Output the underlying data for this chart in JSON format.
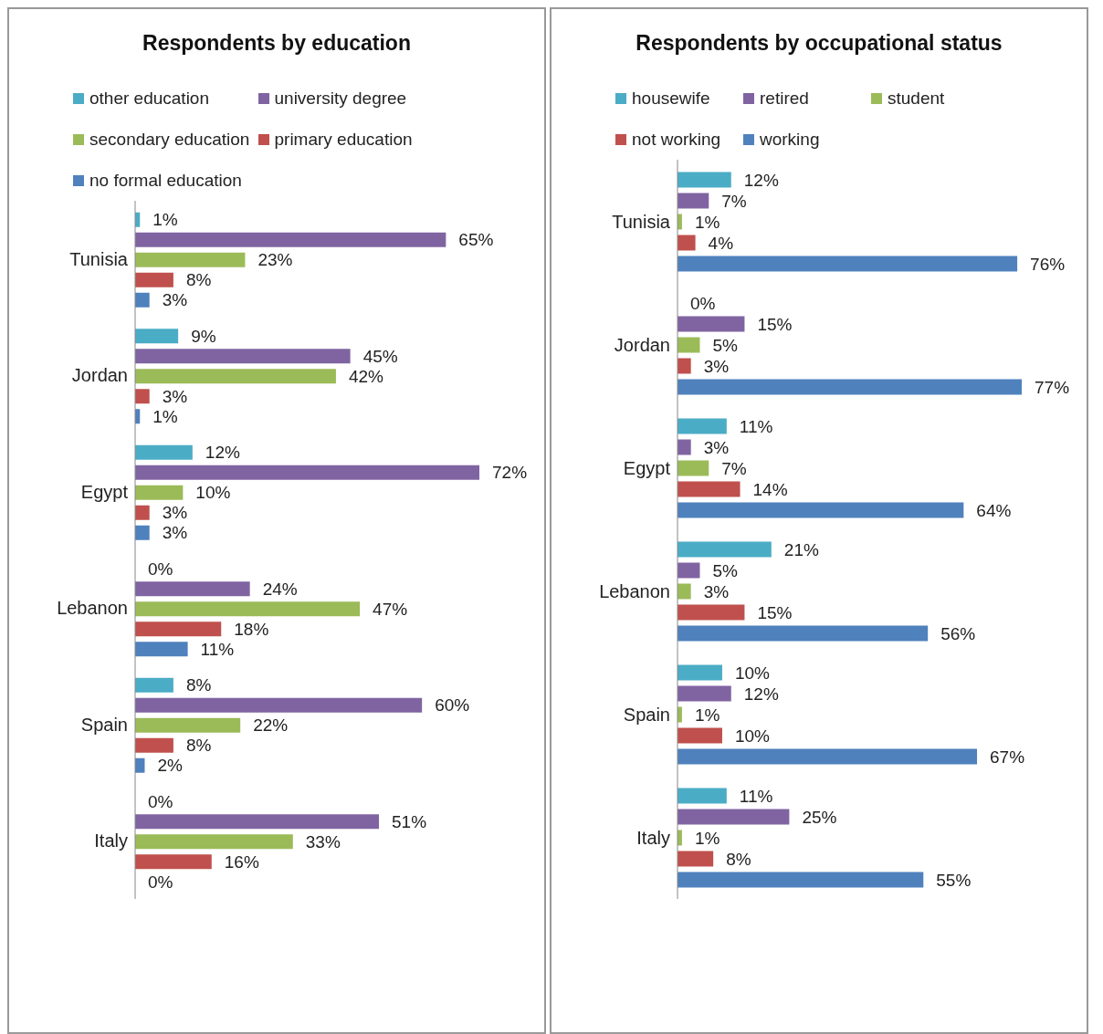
{
  "chart_data": [
    {
      "type": "bar",
      "orientation": "horizontal",
      "title": "Respondents by education",
      "legend": "top",
      "categories": [
        "Tunisia",
        "Jordan",
        "Egypt",
        "Lebanon",
        "Spain",
        "Italy"
      ],
      "series": [
        {
          "name": "other education",
          "color": "#4bacc6",
          "values": [
            1,
            9,
            12,
            0,
            8,
            0
          ],
          "value_labels": [
            "1%",
            "9%",
            "12%",
            "0%",
            "8%",
            "0%"
          ]
        },
        {
          "name": "university degree",
          "color": "#8064a2",
          "values": [
            65,
            45,
            72,
            24,
            60,
            51
          ],
          "value_labels": [
            "65%",
            "45%",
            "72%",
            "24%",
            "60%",
            "51%"
          ]
        },
        {
          "name": "secondary education",
          "color": "#9bbb59",
          "values": [
            23,
            42,
            10,
            47,
            22,
            33
          ],
          "value_labels": [
            "23%",
            "42%",
            "10%",
            "47%",
            "22%",
            "33%"
          ]
        },
        {
          "name": "primary education",
          "color": "#c0504d",
          "values": [
            8,
            3,
            3,
            18,
            8,
            16
          ],
          "value_labels": [
            "8%",
            "3%",
            "3%",
            "18%",
            "8%",
            "16%"
          ]
        },
        {
          "name": "no formal education",
          "color": "#4f81bd",
          "values": [
            3,
            1,
            3,
            11,
            2,
            0
          ],
          "value_labels": [
            "3%",
            "1%",
            "3%",
            "11%",
            "2%",
            "0%"
          ]
        }
      ]
    },
    {
      "type": "bar",
      "orientation": "horizontal",
      "title": "Respondents by occupational status",
      "legend": "top",
      "categories": [
        "Tunisia",
        "Jordan",
        "Egypt",
        "Lebanon",
        "Spain",
        "Italy"
      ],
      "series": [
        {
          "name": "housewife",
          "color": "#4bacc6",
          "values": [
            12,
            0,
            11,
            21,
            10,
            11
          ],
          "value_labels": [
            "12%",
            "0%",
            "11%",
            "21%",
            "10%",
            "11%"
          ]
        },
        {
          "name": "retired",
          "color": "#8064a2",
          "values": [
            7,
            15,
            3,
            5,
            12,
            25
          ],
          "value_labels": [
            "7%",
            "15%",
            "3%",
            "5%",
            "12%",
            "25%"
          ]
        },
        {
          "name": "student",
          "color": "#9bbb59",
          "values": [
            1,
            5,
            7,
            3,
            1,
            1
          ],
          "value_labels": [
            "1%",
            "5%",
            "7%",
            "3%",
            "1%",
            "1%"
          ]
        },
        {
          "name": "not working",
          "color": "#c0504d",
          "values": [
            4,
            3,
            14,
            15,
            10,
            8
          ],
          "value_labels": [
            "4%",
            "3%",
            "14%",
            "15%",
            "10%",
            "8%"
          ]
        },
        {
          "name": "working",
          "color": "#4f81bd",
          "values": [
            76,
            77,
            64,
            56,
            67,
            55
          ],
          "value_labels": [
            "76%",
            "77%",
            "64%",
            "56%",
            "67%",
            "55%"
          ]
        }
      ]
    }
  ]
}
